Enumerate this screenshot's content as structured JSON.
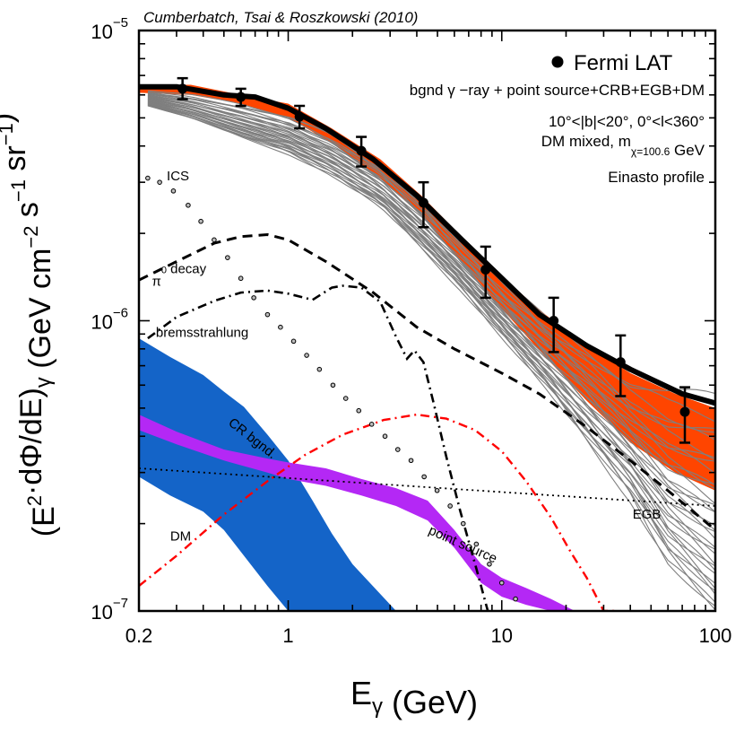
{
  "chart_data": {
    "type": "line",
    "title": "Cumberbatch, Tsai & Roszkowski (2010)",
    "xlabel": "E_γ (GeV)",
    "ylabel": "(E²·dΦ/dE)_γ (GeV cm⁻² s⁻¹ sr⁻¹)",
    "xscale": "log",
    "yscale": "log",
    "xlim": [
      0.2,
      100
    ],
    "ylim": [
      1e-07,
      1e-05
    ],
    "x_ticks": [
      0.2,
      1,
      10,
      100
    ],
    "x_tick_labels": [
      "0.2",
      "1",
      "10",
      "100"
    ],
    "y_ticks": [
      1e-07,
      1e-06,
      1e-05
    ],
    "y_tick_labels": [
      {
        "base": "10",
        "exp": "−7"
      },
      {
        "base": "10",
        "exp": "−6"
      },
      {
        "base": "10",
        "exp": "−5"
      }
    ],
    "legend": {
      "marker_label": "Fermi LAT",
      "position": "top-right"
    },
    "info_lines": [
      "bgnd γ −ray + point source+CRB+EGB+DM",
      "10°<|b|<20°, 0°<l<360°",
      "DM mixed, m_χ=100.6 GeV",
      "Einasto profile"
    ],
    "series": [
      {
        "name": "Fermi LAT",
        "kind": "points_errorbars",
        "color": "#000000",
        "x": [
          0.32,
          0.6,
          1.13,
          2.2,
          4.3,
          8.4,
          17.5,
          36,
          72
        ],
        "y": [
          6.3e-06,
          5.9e-06,
          5.05e-06,
          3.85e-06,
          2.55e-06,
          1.5e-06,
          1e-06,
          7.2e-07,
          4.85e-07
        ],
        "y_low": [
          5.8e-06,
          5.5e-06,
          4.6e-06,
          3.4e-06,
          2.1e-06,
          1.2e-06,
          7.8e-07,
          5.5e-07,
          3.8e-07
        ],
        "y_high": [
          6.85e-06,
          6.3e-06,
          5.5e-06,
          4.3e-06,
          3e-06,
          1.8e-06,
          1.2e-06,
          8.9e-07,
          5.9e-07
        ]
      },
      {
        "name": "Total (best fit)",
        "kind": "line",
        "color": "#000000",
        "x": [
          0.2,
          0.3,
          0.5,
          0.7,
          1.0,
          1.5,
          2.5,
          4.0,
          6.5,
          10,
          15,
          25,
          40,
          70,
          100
        ],
        "y": [
          6.4e-06,
          6.4e-06,
          6e-06,
          5.9e-06,
          5.4e-06,
          4.6e-06,
          3.6e-06,
          2.7e-06,
          1.9e-06,
          1.4e-06,
          1.05e-06,
          8.2e-07,
          6.8e-07,
          5.6e-07,
          5.2e-07
        ]
      },
      {
        "name": "Total band upper",
        "kind": "band_upper",
        "color": "#ff4500",
        "x": [
          0.2,
          0.35,
          0.6,
          1.0,
          1.6,
          2.7,
          4.2,
          6.5,
          10,
          16,
          25,
          40,
          65,
          100
        ],
        "y": [
          6.5e-06,
          6.5e-06,
          6e-06,
          5.6e-06,
          4.6e-06,
          3.6e-06,
          2.7e-06,
          1.95e-06,
          1.42e-06,
          1.05e-06,
          8.2e-07,
          6.6e-07,
          5.6e-07,
          5e-07
        ]
      },
      {
        "name": "Total band lower",
        "kind": "band_lower",
        "color": "#ff4500",
        "x": [
          0.2,
          0.35,
          0.6,
          1.0,
          1.6,
          2.7,
          4.2,
          6.5,
          10,
          16,
          25,
          40,
          65,
          100
        ],
        "y": [
          6.1e-06,
          6e-06,
          5.6e-06,
          5e-06,
          4.1e-06,
          3.1e-06,
          2.3e-06,
          1.6e-06,
          1.1e-06,
          7.5e-07,
          5.3e-07,
          3.8e-07,
          3e-07,
          2.6e-07
        ]
      },
      {
        "name": "Scan samples upper",
        "kind": "band_upper",
        "color": "#808080",
        "x": [
          0.22,
          0.35,
          0.6,
          1.0,
          1.6,
          2.7,
          4.2,
          6.5,
          10,
          16,
          25,
          40,
          60,
          100
        ],
        "y": [
          6.2e-06,
          6e-06,
          5.6e-06,
          5.1e-06,
          4.4e-06,
          3.45e-06,
          2.6e-06,
          1.85e-06,
          1.35e-06,
          1e-06,
          8e-07,
          6.2e-07,
          5.6e-07,
          5.3e-07
        ]
      },
      {
        "name": "Scan samples lower",
        "kind": "band_lower",
        "color": "#808080",
        "x": [
          0.22,
          0.35,
          0.6,
          1.0,
          1.6,
          2.7,
          4.2,
          6.5,
          10,
          16,
          25,
          40,
          60,
          100
        ],
        "y": [
          5.5e-06,
          5e-06,
          4.3e-06,
          3.8e-06,
          3.2e-06,
          2.5e-06,
          1.8e-06,
          1.3e-06,
          9e-07,
          6e-07,
          3.9e-07,
          2.5e-07,
          1.5e-07,
          1e-07
        ]
      },
      {
        "name": "ICS",
        "kind": "points",
        "color": "#000000",
        "x": [
          0.22,
          0.25,
          0.29,
          0.34,
          0.39,
          0.45,
          0.52,
          0.6,
          0.69,
          0.8,
          0.92,
          1.06,
          1.22,
          1.4,
          1.62,
          1.86,
          2.14,
          2.46,
          2.84,
          3.26,
          3.76,
          4.33,
          4.98,
          5.73,
          6.6,
          7.6,
          8.75,
          10,
          11.6
        ],
        "y": [
          3.1e-06,
          3e-06,
          2.8e-06,
          2.5e-06,
          2.2e-06,
          1.9e-06,
          1.65e-06,
          1.4e-06,
          1.2e-06,
          1.05e-06,
          9.5e-07,
          8.5e-07,
          7.6e-07,
          6.8e-07,
          6e-07,
          5.4e-07,
          4.9e-07,
          4.4e-07,
          4e-07,
          3.6e-07,
          3.3e-07,
          2.9e-07,
          2.6e-07,
          2.3e-07,
          2e-07,
          1.7e-07,
          1.45e-07,
          1.25e-07,
          1.1e-07
        ]
      },
      {
        "name": "π0 decay",
        "kind": "dashed_line",
        "color": "#000000",
        "x": [
          0.2,
          0.3,
          0.45,
          0.6,
          0.8,
          1.0,
          1.5,
          2.5,
          4.0,
          6.0,
          10,
          15,
          25,
          40,
          60,
          100
        ],
        "y": [
          1.38e-06,
          1.6e-06,
          1.85e-06,
          1.95e-06,
          1.98e-06,
          1.9e-06,
          1.6e-06,
          1.25e-06,
          9.5e-07,
          8e-07,
          6.6e-07,
          5.6e-07,
          4.3e-07,
          3.3e-07,
          2.6e-07,
          1.9e-07
        ]
      },
      {
        "name": "bremsstrahlung",
        "kind": "dashdot_line",
        "color": "#000000",
        "x": [
          0.22,
          0.3,
          0.45,
          0.6,
          0.8,
          1.0,
          1.3,
          1.6,
          1.8,
          2.2,
          2.7,
          3.2,
          3.6,
          3.9,
          4.3,
          4.8,
          5.5,
          6.4,
          7.6,
          8.6
        ],
        "y": [
          8.7e-07,
          1.03e-06,
          1.17e-06,
          1.25e-06,
          1.27e-06,
          1.24e-06,
          1.18e-06,
          1.3e-06,
          1.32e-06,
          1.3e-06,
          1.16e-06,
          8.8e-07,
          7.4e-07,
          7.9e-07,
          7.2e-07,
          5.2e-07,
          3.4e-07,
          2.2e-07,
          1.4e-07,
          1e-07
        ]
      },
      {
        "name": "EGB",
        "kind": "dotted_line",
        "color": "#000000",
        "x": [
          0.2,
          100
        ],
        "y": [
          3.1e-07,
          2.3e-07
        ]
      },
      {
        "name": "DM",
        "kind": "dashdot_line",
        "color": "#ff0000",
        "x": [
          0.2,
          0.3,
          0.5,
          0.8,
          1.2,
          1.8,
          2.8,
          4.0,
          5.5,
          7.5,
          10,
          13,
          17,
          21,
          25,
          30,
          35
        ],
        "y": [
          1.22e-07,
          1.55e-07,
          2.15e-07,
          2.8e-07,
          3.45e-07,
          4.05e-07,
          4.55e-07,
          4.75e-07,
          4.6e-07,
          4.2e-07,
          3.55e-07,
          2.8e-07,
          2.1e-07,
          1.6e-07,
          1.3e-07,
          1e-07,
          1e-07
        ]
      },
      {
        "name": "CR bgnd. upper",
        "kind": "band_upper",
        "color": "#1464c8",
        "x": [
          0.2,
          0.28,
          0.4,
          0.5,
          0.62,
          0.8,
          1.0,
          1.3,
          1.6,
          2.0,
          3.2
        ],
        "y": [
          8.7e-07,
          7.5e-07,
          6.5e-07,
          5.7e-07,
          5.05e-07,
          4.05e-07,
          3.3e-07,
          2.4e-07,
          1.85e-07,
          1.45e-07,
          1e-07
        ]
      },
      {
        "name": "CR bgnd. lower",
        "kind": "band_lower",
        "color": "#1464c8",
        "x": [
          0.2,
          0.28,
          0.4,
          0.5,
          0.62,
          0.8,
          1.0,
          1.3,
          1.6,
          2.0,
          3.2
        ],
        "y": [
          2.9e-07,
          2.5e-07,
          2.2e-07,
          1.9e-07,
          1.55e-07,
          1.22e-07,
          1e-07,
          1e-07,
          1e-07,
          1e-07,
          1e-07
        ]
      },
      {
        "name": "point source upper",
        "kind": "band_upper",
        "color": "#b428f5",
        "x": [
          0.2,
          0.3,
          0.5,
          0.8,
          1.0,
          1.5,
          2.2,
          3.2,
          4.5,
          6.0,
          8.0,
          10,
          13,
          17,
          22,
          26
        ],
        "y": [
          4.75e-07,
          4.15e-07,
          3.6e-07,
          3.35e-07,
          3.25e-07,
          3.1e-07,
          2.85e-07,
          2.65e-07,
          2.4e-07,
          1.9e-07,
          1.45e-07,
          1.3e-07,
          1.2e-07,
          1.1e-07,
          1e-07,
          1e-07
        ]
      },
      {
        "name": "point source lower",
        "kind": "band_lower",
        "color": "#b428f5",
        "x": [
          0.2,
          0.3,
          0.5,
          0.8,
          1.0,
          1.5,
          2.2,
          3.2,
          4.5,
          6.0,
          8.0,
          10,
          13,
          17,
          22,
          26
        ],
        "y": [
          4.2e-07,
          3.75e-07,
          3.3e-07,
          3e-07,
          2.85e-07,
          2.7e-07,
          2.5e-07,
          2.3e-07,
          2.05e-07,
          1.65e-07,
          1.25e-07,
          1.12e-07,
          1.05e-07,
          1e-07,
          1e-07,
          1e-07
        ]
      }
    ],
    "annotations": [
      {
        "text": "ICS",
        "x": 0.27,
        "y": 3.05e-06
      },
      {
        "text": "π⁰ decay",
        "x": 0.23,
        "y": 1.32e-06
      },
      {
        "text": "bremsstrahlung",
        "x": 0.24,
        "y": 8.8e-07
      },
      {
        "text": "CR bgnd.",
        "x": 0.52,
        "y": 4.4e-07,
        "rotate": 38,
        "color": "#1464c8"
      },
      {
        "text": "point source",
        "x": 4.5,
        "y": 1.85e-07,
        "rotate": 24,
        "color": "#b428f5"
      },
      {
        "text": "EGB",
        "x": 41,
        "y": 2.08e-07
      },
      {
        "text": "DM",
        "x": 0.28,
        "y": 1.75e-07,
        "color": "#ff0000"
      }
    ]
  }
}
